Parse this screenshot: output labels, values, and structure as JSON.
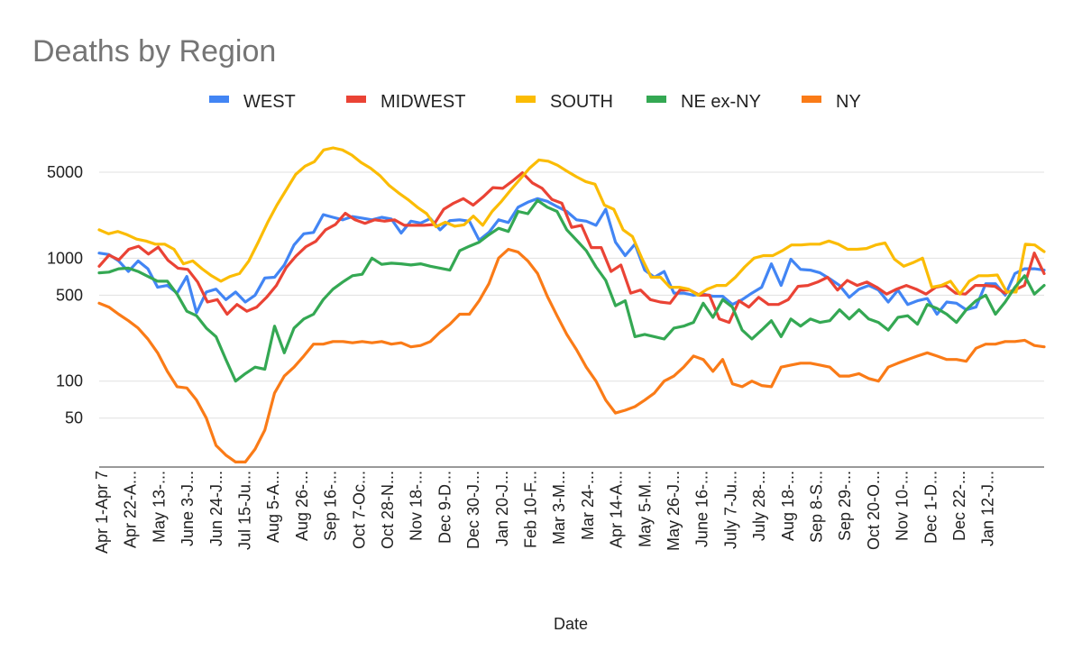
{
  "chart_data": {
    "type": "line",
    "title": "Deaths by Region",
    "xlabel": "Date",
    "ylabel": "",
    "yscale": "log",
    "ylim": [
      20,
      10000
    ],
    "yticks": [
      50,
      100,
      500,
      1000,
      5000
    ],
    "grid": "horizontal",
    "legend_position": "top",
    "x_tick_labels": [
      "Apr 1-Apr 7",
      "Apr 22-A...",
      "May 13-...",
      "June 3-J...",
      "Jun 24-J...",
      "Jul 15-Ju...",
      "Aug 5-A...",
      "Aug 26-...",
      "Sep 16-...",
      "Oct 7-Oc...",
      "Oct 28-N...",
      "Nov 18-...",
      "Dec 9-D...",
      "Dec 30-J...",
      "Jan 20-J...",
      "Feb 10-F...",
      "Mar 3-M...",
      "Mar 24-...",
      "Apr 14-A...",
      "May 5-M...",
      "May 26-J...",
      "June 16-...",
      "July 7-Ju...",
      "July 28-...",
      "Aug 18-...",
      "Sep 8-S...",
      "Sep 29-...",
      "Oct 20-O...",
      "Nov 10-...",
      "Dec 1-D...",
      "Dec 22-...",
      "Jan 12-J..."
    ],
    "series": [
      {
        "name": "WEST",
        "color": "#4285f4",
        "values": [
          1100,
          1070,
          950,
          780,
          950,
          820,
          580,
          600,
          520,
          710,
          360,
          530,
          560,
          460,
          530,
          440,
          500,
          690,
          700,
          880,
          1280,
          1580,
          1620,
          2260,
          2150,
          2050,
          2180,
          2120,
          2050,
          2150,
          2080,
          1600,
          2000,
          1930,
          2100,
          1700,
          2020,
          2050,
          2000,
          1400,
          1620,
          2050,
          1950,
          2600,
          2850,
          3050,
          2900,
          2630,
          2400,
          2050,
          2000,
          1850,
          2500,
          1350,
          1050,
          1300,
          800,
          700,
          780,
          520,
          520,
          500,
          510,
          490,
          490,
          420,
          460,
          520,
          580,
          900,
          600,
          980,
          810,
          800,
          760,
          680,
          600,
          480,
          560,
          600,
          550,
          440,
          550,
          420,
          450,
          470,
          350,
          440,
          430,
          380,
          400,
          620,
          620,
          500,
          750,
          820,
          820,
          800
        ]
      },
      {
        "name": "MIDWEST",
        "color": "#ea4335",
        "values": [
          860,
          1060,
          970,
          1180,
          1250,
          1080,
          1230,
          960,
          830,
          810,
          640,
          440,
          460,
          350,
          420,
          370,
          400,
          480,
          600,
          840,
          1040,
          1240,
          1370,
          1700,
          1880,
          2320,
          2050,
          1920,
          2050,
          2000,
          2050,
          1850,
          1850,
          1850,
          1880,
          2500,
          2800,
          3050,
          2700,
          3150,
          3750,
          3700,
          4250,
          4950,
          4100,
          3700,
          3000,
          2800,
          1780,
          1850,
          1220,
          1220,
          780,
          880,
          520,
          550,
          460,
          440,
          430,
          550,
          550,
          500,
          500,
          320,
          300,
          450,
          400,
          480,
          420,
          420,
          460,
          590,
          600,
          640,
          700,
          550,
          660,
          600,
          640,
          580,
          510,
          560,
          600,
          560,
          510,
          580,
          600,
          520,
          510,
          600,
          600,
          590,
          520,
          550,
          600,
          1100,
          750
        ]
      },
      {
        "name": "SOUTH",
        "color": "#fbbc04",
        "values": [
          1700,
          1580,
          1650,
          1550,
          1430,
          1380,
          1300,
          1300,
          1180,
          900,
          950,
          820,
          720,
          650,
          710,
          750,
          950,
          1350,
          1950,
          2700,
          3600,
          4800,
          5600,
          6100,
          7600,
          7900,
          7600,
          6900,
          6000,
          5400,
          4700,
          3900,
          3400,
          3000,
          2600,
          2300,
          1800,
          1960,
          1820,
          1870,
          2200,
          1850,
          2400,
          2900,
          3600,
          4400,
          5400,
          6300,
          6150,
          5700,
          5100,
          4600,
          4200,
          4000,
          2700,
          2500,
          1700,
          1500,
          1000,
          700,
          700,
          580,
          580,
          560,
          500,
          560,
          600,
          600,
          700,
          850,
          1000,
          1050,
          1050,
          1150,
          1280,
          1280,
          1300,
          1300,
          1380,
          1300,
          1180,
          1180,
          1200,
          1280,
          1330,
          980,
          860,
          920,
          1000,
          580,
          600,
          650,
          510,
          650,
          720,
          720,
          730,
          530,
          530,
          1300,
          1280,
          1130
        ]
      },
      {
        "name": "NE ex-NY",
        "color": "#34a853",
        "values": [
          760,
          770,
          820,
          830,
          780,
          710,
          650,
          650,
          510,
          370,
          340,
          270,
          230,
          150,
          100,
          115,
          130,
          125,
          280,
          170,
          270,
          320,
          350,
          460,
          560,
          640,
          720,
          740,
          1000,
          890,
          910,
          900,
          880,
          900,
          860,
          830,
          800,
          1150,
          1250,
          1350,
          1550,
          1750,
          1650,
          2400,
          2300,
          2950,
          2600,
          2400,
          1700,
          1400,
          1150,
          850,
          660,
          410,
          450,
          230,
          240,
          230,
          220,
          270,
          280,
          300,
          430,
          330,
          460,
          400,
          260,
          220,
          260,
          310,
          230,
          320,
          280,
          320,
          300,
          310,
          380,
          320,
          380,
          320,
          300,
          260,
          330,
          340,
          290,
          420,
          390,
          350,
          300,
          380,
          450,
          500,
          350,
          440,
          580,
          720,
          510,
          600
        ]
      },
      {
        "name": "NY",
        "color": "#fa7b17",
        "values": [
          430,
          400,
          350,
          310,
          270,
          220,
          170,
          120,
          90,
          88,
          70,
          50,
          30,
          25,
          22,
          22,
          28,
          40,
          80,
          110,
          130,
          160,
          200,
          200,
          210,
          210,
          205,
          210,
          205,
          210,
          200,
          205,
          190,
          195,
          210,
          250,
          290,
          350,
          350,
          450,
          620,
          1000,
          1180,
          1120,
          950,
          750,
          490,
          340,
          240,
          180,
          130,
          100,
          70,
          55,
          58,
          62,
          70,
          80,
          100,
          110,
          130,
          160,
          150,
          120,
          150,
          95,
          90,
          100,
          92,
          90,
          130,
          135,
          140,
          140,
          135,
          130,
          110,
          110,
          115,
          105,
          100,
          130,
          140,
          150,
          160,
          170,
          160,
          150,
          150,
          145,
          185,
          200,
          200,
          210,
          210,
          215,
          195,
          190
        ]
      }
    ]
  }
}
